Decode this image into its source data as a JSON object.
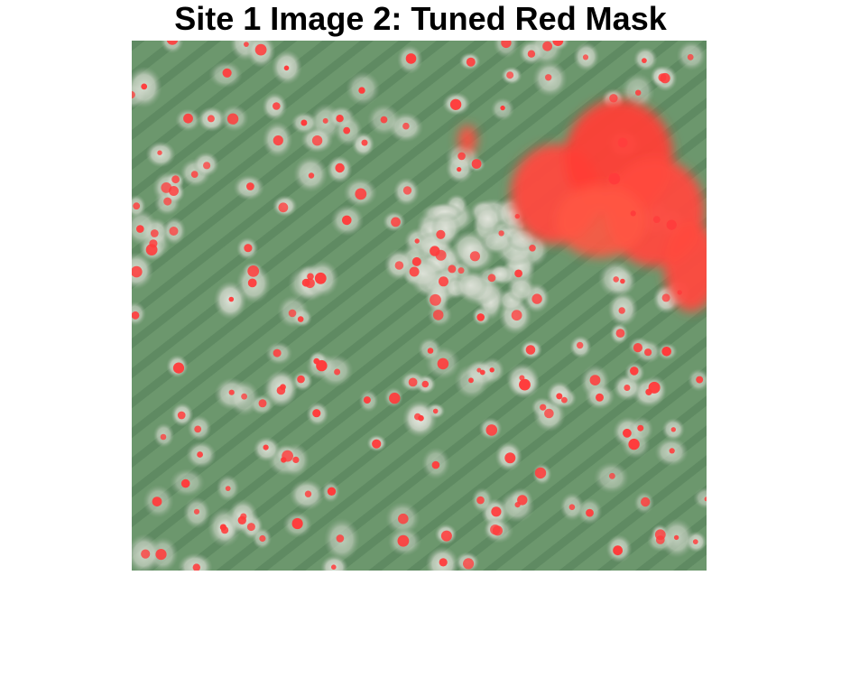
{
  "figure": {
    "title": "Site 1 Image 2: Tuned Red Mask"
  },
  "image": {
    "description_icon": "aerial-field-photo-with-red-mask",
    "colors": {
      "field_green": "#6f9a70",
      "field_dark": "#5c8660",
      "soil_light": "#d8dcd2",
      "mask_red": "#ff3b3b"
    }
  }
}
